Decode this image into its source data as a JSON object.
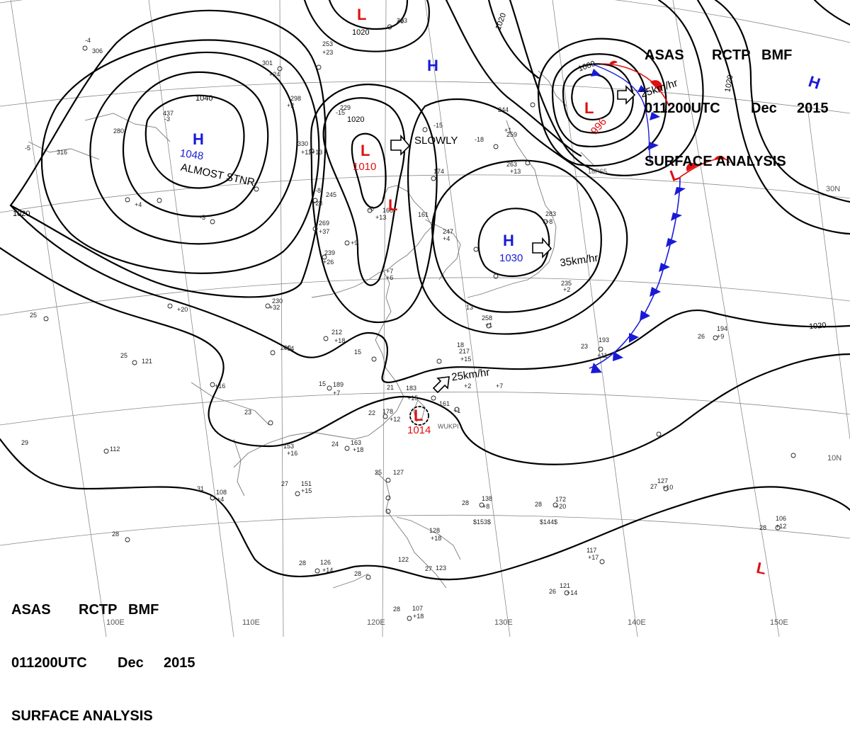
{
  "header": {
    "line1": [
      "ASAS",
      "RCTP",
      "BMF"
    ],
    "line2": [
      "011200UTC",
      "Dec",
      "2015"
    ],
    "line3": "SURFACE ANALYSIS"
  },
  "colors": {
    "high": "#1a1ad6",
    "low": "#e01010",
    "isobar": "#000000",
    "grid": "#8a8a8a"
  },
  "pressure_systems": [
    {
      "type": "H",
      "value": "1048",
      "note": "ALMOST STNR"
    },
    {
      "type": "H",
      "value": "1030",
      "note": ""
    },
    {
      "type": "H",
      "value": "",
      "note": ""
    },
    {
      "type": "H",
      "value": "",
      "note": ""
    },
    {
      "type": "L",
      "value": "1010",
      "note": ""
    },
    {
      "type": "L",
      "value": "",
      "note": ""
    },
    {
      "type": "L",
      "value": "",
      "note": ""
    },
    {
      "type": "L",
      "value": "996",
      "note": ""
    },
    {
      "type": "L",
      "value": "",
      "note": ""
    },
    {
      "type": "L",
      "value": "1014",
      "note": ""
    },
    {
      "type": "L",
      "value": "",
      "note": ""
    }
  ],
  "isobar_labels": [
    "1040",
    "1020",
    "1020",
    "1020",
    "1020",
    "1020",
    "1000",
    "1020"
  ],
  "motion_labels": [
    "SLOWLY",
    "35km/hr",
    "25km/hr",
    "25km/hr"
  ],
  "longitude_labels": [
    "100E",
    "110E",
    "120E",
    "130E",
    "140E",
    "150E"
  ],
  "latitude_labels": [
    "30N",
    "10N"
  ],
  "place_labels": [
    "WUKPI",
    "18PS5"
  ],
  "station_samples": [
    "306",
    "437",
    "280",
    "316",
    "229",
    "223",
    "253",
    "301",
    "298",
    "330",
    "245",
    "269",
    "239",
    "230",
    "212",
    "200",
    "189",
    "183",
    "178",
    "163",
    "153",
    "151",
    "108",
    "112",
    "121",
    "106",
    "172",
    "138",
    "127",
    "122",
    "126",
    "107",
    "194",
    "193",
    "217",
    "161",
    "235",
    "258",
    "244",
    "259",
    "263",
    "283",
    "247",
    "174",
    "168",
    "161",
    "26",
    "28",
    "25",
    "23",
    "24",
    "27",
    "29",
    "31",
    "15",
    "18",
    "21",
    "22",
    "13",
    "+14",
    "+18",
    "+20",
    "+16",
    "+12",
    "+7",
    "+8",
    "+9",
    "+10",
    "+11",
    "+13",
    "+17",
    "+23",
    "+24",
    "+26",
    "+28",
    "+32",
    "+37",
    "+6",
    "+15",
    "-3",
    "-8",
    "-15",
    "-18",
    "$144$",
    "$153$",
    "1014"
  ]
}
